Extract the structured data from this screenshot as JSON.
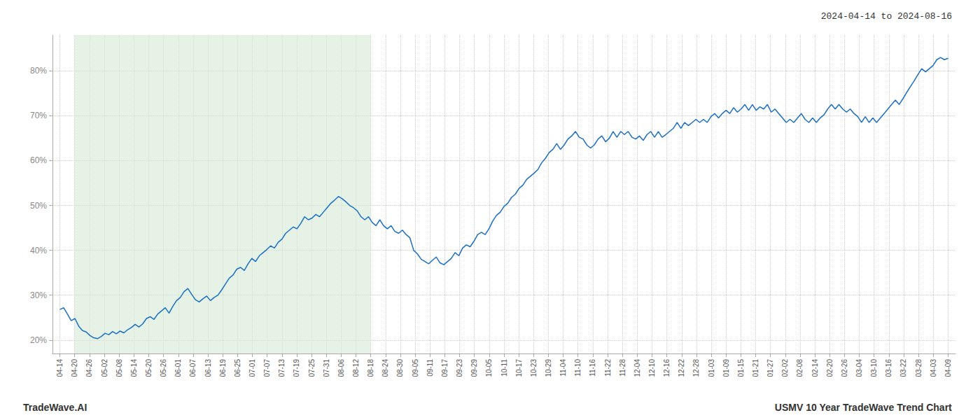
{
  "chart_data": {
    "type": "line",
    "annotations": [
      "2024-04-14 to 2024-08-16",
      "TradeWave.AI",
      "USMV 10 Year TradeWave Trend Chart"
    ],
    "color": "#1a6fc4",
    "grid": true,
    "shaded_spans": [
      {
        "x": [
          1,
          21
        ],
        "color": "#d4ead4"
      }
    ],
    "xlim": [
      -0.5,
      60.5
    ],
    "xticks": [
      {
        "value": 0,
        "label": "04-14"
      },
      {
        "value": 1,
        "label": "04-20"
      },
      {
        "value": 2,
        "label": "04-26"
      },
      {
        "value": 3,
        "label": "05-02"
      },
      {
        "value": 4,
        "label": "05-08"
      },
      {
        "value": 5,
        "label": "05-14"
      },
      {
        "value": 6,
        "label": "05-20"
      },
      {
        "value": 7,
        "label": "05-26"
      },
      {
        "value": 8,
        "label": "06-01"
      },
      {
        "value": 9,
        "label": "06-07"
      },
      {
        "value": 10,
        "label": "06-13"
      },
      {
        "value": 11,
        "label": "06-19"
      },
      {
        "value": 12,
        "label": "06-25"
      },
      {
        "value": 13,
        "label": "07-01"
      },
      {
        "value": 14,
        "label": "07-07"
      },
      {
        "value": 15,
        "label": "07-13"
      },
      {
        "value": 16,
        "label": "07-19"
      },
      {
        "value": 17,
        "label": "07-25"
      },
      {
        "value": 18,
        "label": "07-31"
      },
      {
        "value": 19,
        "label": "08-06"
      },
      {
        "value": 20,
        "label": "08-12"
      },
      {
        "value": 21,
        "label": "08-18"
      },
      {
        "value": 22,
        "label": "08-24"
      },
      {
        "value": 23,
        "label": "08-30"
      },
      {
        "value": 24,
        "label": "09-05"
      },
      {
        "value": 25,
        "label": "09-11"
      },
      {
        "value": 26,
        "label": "09-17"
      },
      {
        "value": 27,
        "label": "09-23"
      },
      {
        "value": 28,
        "label": "09-29"
      },
      {
        "value": 29,
        "label": "10-05"
      },
      {
        "value": 30,
        "label": "10-11"
      },
      {
        "value": 31,
        "label": "10-17"
      },
      {
        "value": 32,
        "label": "10-23"
      },
      {
        "value": 33,
        "label": "10-29"
      },
      {
        "value": 34,
        "label": "11-04"
      },
      {
        "value": 35,
        "label": "11-10"
      },
      {
        "value": 36,
        "label": "11-16"
      },
      {
        "value": 37,
        "label": "11-22"
      },
      {
        "value": 38,
        "label": "11-28"
      },
      {
        "value": 39,
        "label": "12-04"
      },
      {
        "value": 40,
        "label": "12-10"
      },
      {
        "value": 41,
        "label": "12-16"
      },
      {
        "value": 42,
        "label": "12-22"
      },
      {
        "value": 43,
        "label": "12-28"
      },
      {
        "value": 44,
        "label": "01-03"
      },
      {
        "value": 45,
        "label": "01-09"
      },
      {
        "value": 46,
        "label": "01-15"
      },
      {
        "value": 47,
        "label": "01-21"
      },
      {
        "value": 48,
        "label": "01-27"
      },
      {
        "value": 49,
        "label": "02-02"
      },
      {
        "value": 50,
        "label": "02-08"
      },
      {
        "value": 51,
        "label": "02-14"
      },
      {
        "value": 52,
        "label": "02-20"
      },
      {
        "value": 53,
        "label": "02-26"
      },
      {
        "value": 54,
        "label": "03-04"
      },
      {
        "value": 55,
        "label": "03-10"
      },
      {
        "value": 56,
        "label": "03-16"
      },
      {
        "value": 57,
        "label": "03-22"
      },
      {
        "value": 58,
        "label": "03-28"
      },
      {
        "value": 59,
        "label": "04-03"
      },
      {
        "value": 60,
        "label": "04-09"
      }
    ],
    "ylim": [
      17,
      88
    ],
    "yticks": [
      {
        "value": 20,
        "label": "20%"
      },
      {
        "value": 30,
        "label": "30%"
      },
      {
        "value": 40,
        "label": "40%"
      },
      {
        "value": 50,
        "label": "50%"
      },
      {
        "value": 60,
        "label": "60%"
      },
      {
        "value": 70,
        "label": "70%"
      },
      {
        "value": 80,
        "label": "80%"
      }
    ],
    "x": [
      0,
      0.254237,
      0.508475,
      0.762712,
      1.016949,
      1.271186,
      1.525424,
      1.779661,
      2.033898,
      2.288136,
      2.542373,
      2.79661,
      3.050847,
      3.305085,
      3.559322,
      3.813559,
      4.067797,
      4.322034,
      4.576271,
      4.830508,
      5.084746,
      5.338983,
      5.59322,
      5.847458,
      6.101695,
      6.355932,
      6.610169,
      6.864407,
      7.118644,
      7.372881,
      7.627119,
      7.881356,
      8.135593,
      8.389831,
      8.644068,
      8.898305,
      9.152542,
      9.40678,
      9.661017,
      9.915254,
      10.169492,
      10.423729,
      10.677966,
      10.932203,
      11.186441,
      11.440678,
      11.694915,
      11.949153,
      12.20339,
      12.457627,
      12.711864,
      12.966102,
      13.220339,
      13.474576,
      13.728814,
      13.983051,
      14.237288,
      14.491525,
      14.745763,
      15,
      15.254237,
      15.508475,
      15.762712,
      16.016949,
      16.271186,
      16.525424,
      16.779661,
      17.033898,
      17.288136,
      17.542373,
      17.79661,
      18.050847,
      18.305085,
      18.559322,
      18.813559,
      19.067797,
      19.322034,
      19.576271,
      19.830508,
      20.084746,
      20.338983,
      20.59322,
      20.847458,
      21.101695,
      21.355932,
      21.610169,
      21.864407,
      22.118644,
      22.372881,
      22.627119,
      22.881356,
      23.135593,
      23.389831,
      23.644068,
      23.898305,
      24.152542,
      24.40678,
      24.661017,
      24.915254,
      25.169492,
      25.423729,
      25.677966,
      25.932203,
      26.186441,
      26.440678,
      26.694915,
      26.949153,
      27.20339,
      27.457627,
      27.711864,
      27.966102,
      28.220339,
      28.474576,
      28.728814,
      28.983051,
      29.237288,
      29.491525,
      29.745763,
      30,
      30.254237,
      30.508475,
      30.762712,
      31.016949,
      31.271186,
      31.525424,
      31.779661,
      32.033898,
      32.288136,
      32.542373,
      32.79661,
      33.050847,
      33.305085,
      33.559322,
      33.813559,
      34.067797,
      34.322034,
      34.576271,
      34.830508,
      35.084746,
      35.338983,
      35.59322,
      35.847458,
      36.101695,
      36.355932,
      36.610169,
      36.864407,
      37.118644,
      37.372881,
      37.627119,
      37.881356,
      38.135593,
      38.389831,
      38.644068,
      38.898305,
      39.152542,
      39.40678,
      39.661017,
      39.915254,
      40.169492,
      40.423729,
      40.677966,
      40.932203,
      41.186441,
      41.440678,
      41.694915,
      41.949153,
      42.20339,
      42.457627,
      42.711864,
      42.966102,
      43.220339,
      43.474576,
      43.728814,
      43.983051,
      44.237288,
      44.491525,
      44.745763,
      45,
      45.254237,
      45.508475,
      45.762712,
      46.016949,
      46.271186,
      46.525424,
      46.779661,
      47.033898,
      47.288136,
      47.542373,
      47.79661,
      48.050847,
      48.305085,
      48.559322,
      48.813559,
      49.067797,
      49.322034,
      49.576271,
      49.830508,
      50.084746,
      50.338983,
      50.59322,
      50.847458,
      51.101695,
      51.355932,
      51.610169,
      51.864407,
      52.118644,
      52.372881,
      52.627119,
      52.881356,
      53.135593,
      53.389831,
      53.644068,
      53.898305,
      54.152542,
      54.40678,
      54.661017,
      54.915254,
      55.169492,
      55.423729,
      55.677966,
      55.932203,
      56.186441,
      56.440678,
      56.694915,
      56.949153,
      57.20339,
      57.457627,
      57.711864,
      57.966102,
      58.220339,
      58.474576,
      58.728814,
      58.983051,
      59.237288,
      59.491525,
      59.745763,
      60
    ],
    "values": [
      26.8,
      27.2,
      25.8,
      24.3,
      24.8,
      23.1,
      22.1,
      21.8,
      21.0,
      20.5,
      20.3,
      20.8,
      21.5,
      21.2,
      21.9,
      21.4,
      22.0,
      21.6,
      22.3,
      22.8,
      23.5,
      22.9,
      23.6,
      24.8,
      25.2,
      24.6,
      25.8,
      26.5,
      27.2,
      26.0,
      27.5,
      28.8,
      29.5,
      30.8,
      31.5,
      30.2,
      29.0,
      28.5,
      29.2,
      29.8,
      28.8,
      29.5,
      30.0,
      31.2,
      32.5,
      33.8,
      34.5,
      35.8,
      36.2,
      35.5,
      37.0,
      38.2,
      37.5,
      38.8,
      39.5,
      40.2,
      41.0,
      40.5,
      41.8,
      42.5,
      43.8,
      44.5,
      45.2,
      44.8,
      46.0,
      47.5,
      46.8,
      47.2,
      48.0,
      47.5,
      48.5,
      49.5,
      50.5,
      51.2,
      52.0,
      51.5,
      50.8,
      50.0,
      49.5,
      48.8,
      47.5,
      46.8,
      47.5,
      46.2,
      45.5,
      46.8,
      45.5,
      44.8,
      45.5,
      44.2,
      43.8,
      44.5,
      43.5,
      42.8,
      40.0,
      39.2,
      38.0,
      37.5,
      37.0,
      37.8,
      38.5,
      37.2,
      36.8,
      37.5,
      38.2,
      39.5,
      38.8,
      40.5,
      41.2,
      40.8,
      42.0,
      43.5,
      44.0,
      43.5,
      44.8,
      46.5,
      47.8,
      48.5,
      49.8,
      50.5,
      51.8,
      52.5,
      53.8,
      54.5,
      55.8,
      56.5,
      57.2,
      58.0,
      59.5,
      60.5,
      61.8,
      62.5,
      63.8,
      62.5,
      63.5,
      64.8,
      65.5,
      66.5,
      65.2,
      64.8,
      63.5,
      62.8,
      63.5,
      64.8,
      65.5,
      64.2,
      65.0,
      66.5,
      65.2,
      66.5,
      65.8,
      66.5,
      65.2,
      64.8,
      65.5,
      64.5,
      65.8,
      66.5,
      65.2,
      66.5,
      65.2,
      65.8,
      66.5,
      67.2,
      68.5,
      67.2,
      68.5,
      67.8,
      68.5,
      69.2,
      68.5,
      69.2,
      68.5,
      69.8,
      70.5,
      69.5,
      70.5,
      71.2,
      70.5,
      71.8,
      70.8,
      71.5,
      72.5,
      71.2,
      72.5,
      71.2,
      72.0,
      71.5,
      72.5,
      70.8,
      71.5,
      70.5,
      69.5,
      68.5,
      69.2,
      68.5,
      69.5,
      70.5,
      69.2,
      68.5,
      69.5,
      68.5,
      69.5,
      70.2,
      71.5,
      72.5,
      71.5,
      72.5,
      71.5,
      70.8,
      71.5,
      70.5,
      69.8,
      68.5,
      69.8,
      68.5,
      69.5,
      68.5,
      69.5,
      70.5,
      71.5,
      72.5,
      73.5,
      72.5,
      73.8,
      75.2,
      76.5,
      77.8,
      79.2,
      80.5,
      79.8,
      80.5,
      81.2,
      82.5,
      83.0,
      82.5,
      82.8
    ]
  }
}
